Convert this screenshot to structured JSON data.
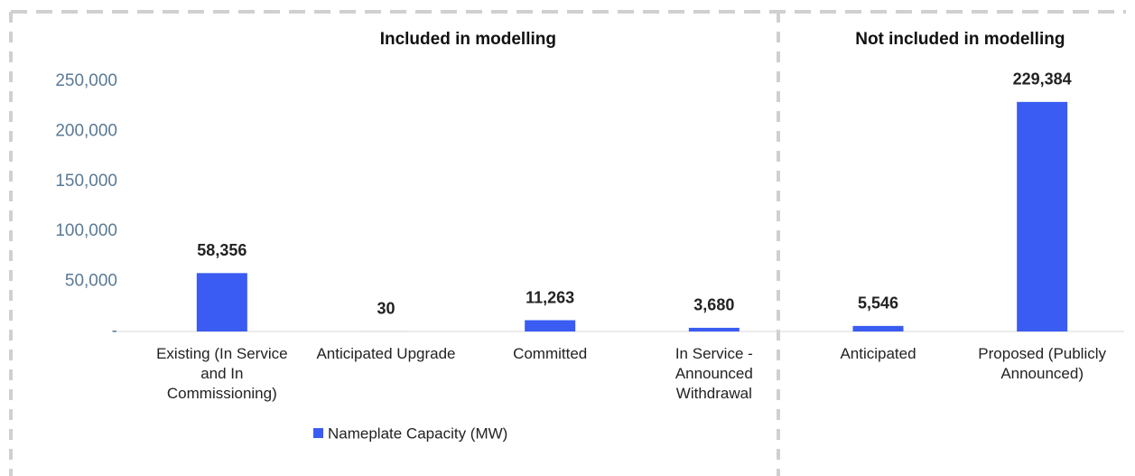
{
  "chart_data": {
    "type": "bar",
    "annotations": [
      "Included in modelling",
      "Not included in modelling"
    ],
    "categories": [
      "Existing (In Service and In Commissioning)",
      "Anticipated Upgrade",
      "Committed",
      "In Service - Announced Withdrawal",
      "Anticipated",
      "Proposed (Publicly Announced)"
    ],
    "series": [
      {
        "name": "Nameplate Capacity (MW)",
        "color": "#3a5cf2",
        "values": [
          58356,
          30,
          11263,
          3680,
          5546,
          229384
        ],
        "value_labels": [
          "58,356",
          "30",
          "11,263",
          "3,680",
          "5,546",
          "229,384"
        ]
      }
    ],
    "ylim": [
      0,
      250000
    ],
    "yticks": [
      {
        "value": 0,
        "label": "-"
      },
      {
        "value": 50000,
        "label": "50,000"
      },
      {
        "value": 100000,
        "label": "100,000"
      },
      {
        "value": 150000,
        "label": "150,000"
      },
      {
        "value": 200000,
        "label": "200,000"
      },
      {
        "value": 250000,
        "label": "250,000"
      }
    ],
    "legend": "bottom"
  }
}
